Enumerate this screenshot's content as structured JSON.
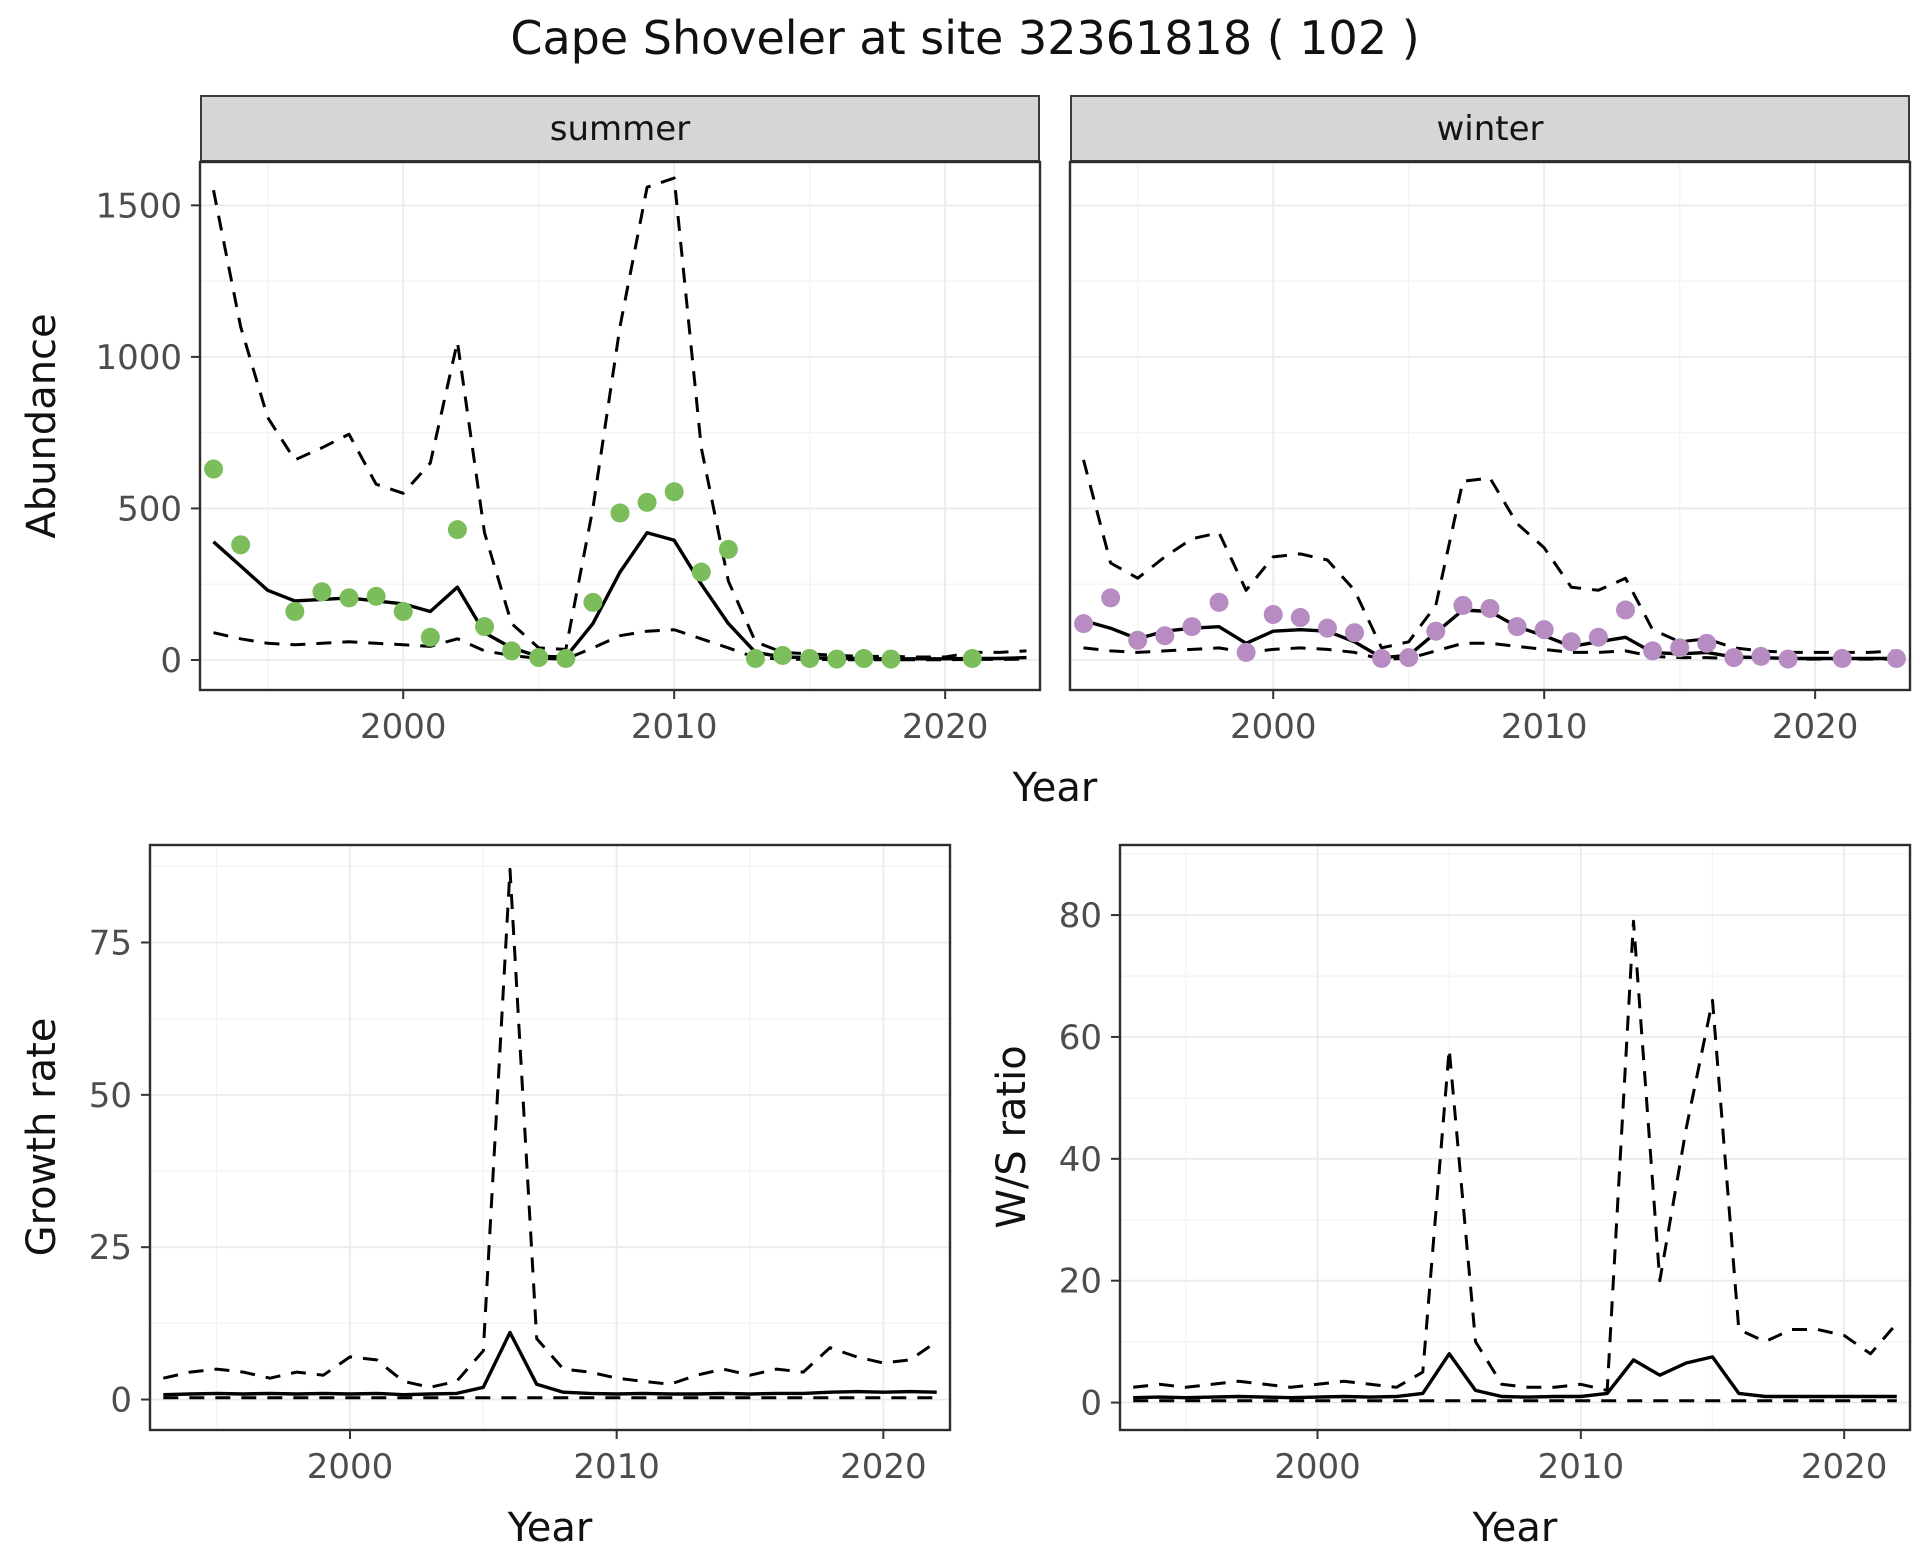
{
  "title": "Cape Shoveler at site 32361818 ( 102 )",
  "colors": {
    "line": "#000000",
    "summer_points": "#7cbd5b",
    "winter_points": "#b78cc2",
    "strip_bg": "#d6d6d6",
    "grid": "#ebebeb",
    "tick_text": "#4d4d4d"
  },
  "chart_data": [
    {
      "id": "abundance-summer",
      "type": "line",
      "facet_label": "summer",
      "ylabel": "Abundance",
      "xlabel": "Year",
      "xlim": [
        1992.5,
        2023.5
      ],
      "ylim": [
        -99,
        1643
      ],
      "xticks": [
        2000,
        2010,
        2020
      ],
      "yticks": [
        0,
        500,
        1000,
        1500
      ],
      "line_color": "#000000",
      "x_years": [
        1993,
        1994,
        1995,
        1996,
        1997,
        1998,
        1999,
        2000,
        2001,
        2002,
        2003,
        2004,
        2005,
        2006,
        2007,
        2008,
        2009,
        2010,
        2011,
        2012,
        2013,
        2014,
        2015,
        2016,
        2017,
        2018,
        2019,
        2020,
        2021,
        2022,
        2023
      ],
      "series": [
        {
          "name": "upper_ci",
          "style": "dashed",
          "values": [
            1550,
            1100,
            800,
            660,
            700,
            745,
            580,
            550,
            650,
            1050,
            420,
            120,
            40,
            35,
            500,
            1100,
            1560,
            1590,
            700,
            260,
            60,
            25,
            20,
            15,
            12,
            12,
            10,
            10,
            25,
            25,
            30
          ]
        },
        {
          "name": "lower_ci",
          "style": "dashed",
          "values": [
            90,
            70,
            55,
            50,
            55,
            60,
            55,
            50,
            45,
            70,
            30,
            15,
            5,
            3,
            40,
            80,
            95,
            100,
            70,
            40,
            8,
            3,
            2,
            1,
            1,
            1,
            1,
            1,
            2,
            2,
            3
          ]
        },
        {
          "name": "fit",
          "style": "solid",
          "values": [
            390,
            310,
            230,
            195,
            200,
            205,
            195,
            185,
            160,
            240,
            90,
            40,
            12,
            10,
            120,
            290,
            420,
            395,
            250,
            120,
            25,
            10,
            8,
            5,
            5,
            4,
            4,
            4,
            5,
            5,
            8
          ]
        }
      ],
      "points": {
        "name": "observed",
        "color": "#7cbd5b",
        "x": [
          1993,
          1994,
          1996,
          1997,
          1998,
          1999,
          2000,
          2001,
          2002,
          2003,
          2004,
          2005,
          2006,
          2007,
          2008,
          2009,
          2010,
          2011,
          2012,
          2013,
          2014,
          2015,
          2016,
          2017,
          2018,
          2021
        ],
        "y": [
          630,
          380,
          160,
          225,
          205,
          210,
          160,
          75,
          430,
          110,
          30,
          8,
          5,
          190,
          485,
          520,
          555,
          290,
          365,
          5,
          15,
          5,
          3,
          5,
          3,
          5
        ]
      }
    },
    {
      "id": "abundance-winter",
      "type": "line",
      "facet_label": "winter",
      "ylabel": "Abundance",
      "xlabel": "Year",
      "xlim": [
        1992.5,
        2023.5
      ],
      "ylim": [
        -99,
        1643
      ],
      "xticks": [
        2000,
        2010,
        2020
      ],
      "yticks": [
        0,
        500,
        1000,
        1500
      ],
      "line_color": "#000000",
      "x_years": [
        1993,
        1994,
        1995,
        1996,
        1997,
        1998,
        1999,
        2000,
        2001,
        2002,
        2003,
        2004,
        2005,
        2006,
        2007,
        2008,
        2009,
        2010,
        2011,
        2012,
        2013,
        2014,
        2015,
        2016,
        2017,
        2018,
        2019,
        2020,
        2021,
        2022,
        2023
      ],
      "series": [
        {
          "name": "upper_ci",
          "style": "dashed",
          "values": [
            660,
            320,
            270,
            340,
            400,
            420,
            230,
            340,
            350,
            330,
            230,
            40,
            60,
            180,
            590,
            600,
            450,
            370,
            240,
            230,
            270,
            100,
            60,
            70,
            40,
            30,
            25,
            25,
            25,
            25,
            30
          ]
        },
        {
          "name": "lower_ci",
          "style": "dashed",
          "values": [
            40,
            30,
            25,
            30,
            35,
            40,
            25,
            35,
            40,
            35,
            25,
            3,
            5,
            30,
            55,
            55,
            45,
            35,
            25,
            25,
            30,
            12,
            8,
            8,
            5,
            4,
            3,
            3,
            3,
            3,
            3
          ]
        },
        {
          "name": "fit",
          "style": "solid",
          "values": [
            130,
            105,
            70,
            95,
            105,
            110,
            55,
            95,
            100,
            95,
            60,
            8,
            15,
            90,
            165,
            160,
            110,
            80,
            45,
            60,
            75,
            25,
            20,
            25,
            10,
            8,
            5,
            5,
            5,
            5,
            5
          ]
        }
      ],
      "points": {
        "name": "observed",
        "color": "#b78cc2",
        "x": [
          1993,
          1994,
          1995,
          1996,
          1997,
          1998,
          1999,
          2000,
          2001,
          2002,
          2003,
          2004,
          2005,
          2006,
          2007,
          2008,
          2009,
          2010,
          2011,
          2012,
          2013,
          2014,
          2015,
          2016,
          2017,
          2018,
          2019,
          2021,
          2023
        ],
        "y": [
          120,
          205,
          65,
          80,
          110,
          190,
          25,
          150,
          140,
          105,
          90,
          5,
          8,
          95,
          180,
          170,
          110,
          100,
          60,
          75,
          165,
          30,
          40,
          55,
          8,
          12,
          3,
          5,
          5
        ]
      }
    },
    {
      "id": "growth-rate",
      "type": "line",
      "ylabel": "Growth rate",
      "xlabel": "Year",
      "xlim": [
        1992.5,
        2022.5
      ],
      "ylim": [
        -5,
        91
      ],
      "xticks": [
        2000,
        2010,
        2020
      ],
      "yticks": [
        0,
        25,
        50,
        75
      ],
      "line_color": "#000000",
      "x_years": [
        1993,
        1994,
        1995,
        1996,
        1997,
        1998,
        1999,
        2000,
        2001,
        2002,
        2003,
        2004,
        2005,
        2006,
        2007,
        2008,
        2009,
        2010,
        2011,
        2012,
        2013,
        2014,
        2015,
        2016,
        2017,
        2018,
        2019,
        2020,
        2021,
        2022
      ],
      "series": [
        {
          "name": "upper_ci",
          "style": "dashed",
          "values": [
            3.5,
            4.5,
            5,
            4.5,
            3.5,
            4.5,
            4,
            7,
            6.5,
            3,
            2,
            3,
            8,
            87,
            10,
            5,
            4.5,
            3.5,
            3,
            2.5,
            4,
            5,
            4,
            5,
            4.5,
            8.5,
            7,
            6,
            6.5,
            9.5
          ]
        },
        {
          "name": "lower_ci",
          "style": "dashed",
          "values": [
            0.3,
            0.3,
            0.3,
            0.3,
            0.3,
            0.3,
            0.3,
            0.3,
            0.3,
            0.3,
            0.3,
            0.3,
            0.3,
            0.3,
            0.3,
            0.3,
            0.3,
            0.3,
            0.3,
            0.3,
            0.3,
            0.3,
            0.3,
            0.3,
            0.3,
            0.3,
            0.3,
            0.3,
            0.3,
            0.3
          ]
        },
        {
          "name": "fit",
          "style": "solid",
          "values": [
            0.8,
            0.9,
            1.0,
            0.9,
            1.0,
            0.9,
            1.0,
            0.9,
            1.0,
            0.8,
            0.9,
            1.0,
            2.0,
            11,
            2.5,
            1.2,
            1.0,
            0.9,
            1.0,
            0.9,
            0.9,
            1.0,
            0.9,
            1.0,
            1.0,
            1.2,
            1.3,
            1.2,
            1.3,
            1.2
          ]
        }
      ]
    },
    {
      "id": "ws-ratio",
      "type": "line",
      "ylabel": "W/S ratio",
      "xlabel": "Year",
      "xlim": [
        1992.5,
        2022.5
      ],
      "ylim": [
        -4.5,
        91.5
      ],
      "xticks": [
        2000,
        2010,
        2020
      ],
      "yticks": [
        0,
        20,
        40,
        60,
        80
      ],
      "line_color": "#000000",
      "x_years": [
        1993,
        1994,
        1995,
        1996,
        1997,
        1998,
        1999,
        2000,
        2001,
        2002,
        2003,
        2004,
        2005,
        2006,
        2007,
        2008,
        2009,
        2010,
        2011,
        2012,
        2013,
        2014,
        2015,
        2016,
        2017,
        2018,
        2019,
        2020,
        2021,
        2022
      ],
      "series": [
        {
          "name": "upper_ci",
          "style": "dashed",
          "values": [
            2.5,
            3,
            2.5,
            3,
            3.5,
            3,
            2.5,
            3,
            3.5,
            3,
            2.5,
            5,
            58,
            10,
            3,
            2.5,
            2.5,
            3,
            2,
            79,
            20,
            45,
            66,
            12,
            10,
            12,
            12,
            11,
            8,
            13
          ]
        },
        {
          "name": "lower_ci",
          "style": "dashed",
          "values": [
            0.3,
            0.3,
            0.3,
            0.3,
            0.3,
            0.3,
            0.3,
            0.3,
            0.3,
            0.3,
            0.3,
            0.3,
            0.3,
            0.3,
            0.3,
            0.3,
            0.3,
            0.3,
            0.3,
            0.3,
            0.3,
            0.3,
            0.3,
            0.3,
            0.3,
            0.3,
            0.3,
            0.3,
            0.3,
            0.3
          ]
        },
        {
          "name": "fit",
          "style": "solid",
          "values": [
            0.8,
            0.9,
            0.8,
            0.9,
            1.0,
            0.9,
            0.8,
            0.9,
            1.0,
            0.9,
            1.0,
            1.5,
            8,
            2,
            1,
            0.9,
            1,
            1,
            1.5,
            7,
            4.5,
            6.5,
            7.5,
            1.5,
            1,
            1,
            1,
            1,
            1,
            1
          ]
        }
      ]
    }
  ]
}
